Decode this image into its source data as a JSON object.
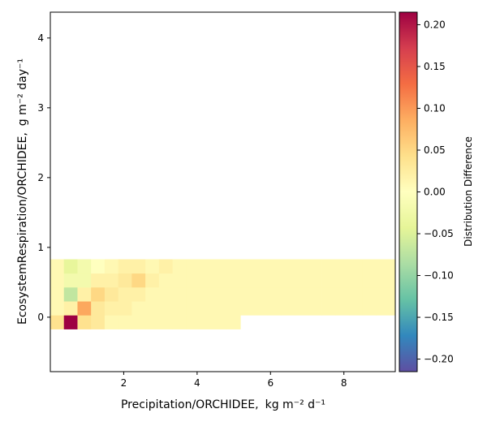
{
  "chart_data": {
    "type": "heatmap",
    "title": "",
    "xlabel": "Precipitation/ORCHIDEE,",
    "xlabel_units": "kg m⁻² d⁻¹",
    "ylabel": "EcosystemRespiration/ORCHIDEE,",
    "ylabel_units": "g m⁻² day⁻¹",
    "xlim": [
      0.0,
      9.4
    ],
    "ylim": [
      -0.78,
      4.37
    ],
    "x_ticks": [
      2,
      4,
      6,
      8
    ],
    "y_ticks": [
      0,
      1,
      2,
      3,
      4
    ],
    "cell_width": 0.37,
    "cell_height": 0.2,
    "x_start": 0.0,
    "y_start": -0.17,
    "colorbar": {
      "label": "Distribution Difference",
      "min": -0.215,
      "max": 0.215,
      "ticks": [
        -0.2,
        -0.15,
        -0.1,
        -0.05,
        0.0,
        0.05,
        0.1,
        0.15,
        0.2
      ],
      "tick_labels": [
        "−0.20",
        "−0.15",
        "−0.10",
        "−0.05",
        "0.00",
        "0.05",
        "0.10",
        "0.15",
        "0.20"
      ],
      "colormap": "Spectral_r"
    },
    "cells": [
      [
        0,
        0,
        0.04
      ],
      [
        1,
        0,
        0.215
      ],
      [
        2,
        0,
        0.04
      ],
      [
        3,
        0,
        0.03
      ],
      [
        4,
        0,
        0.01
      ],
      [
        5,
        0,
        0.01
      ],
      [
        6,
        0,
        0.01
      ],
      [
        7,
        0,
        0.01
      ],
      [
        8,
        0,
        0.01
      ],
      [
        9,
        0,
        0.01
      ],
      [
        10,
        0,
        0.01
      ],
      [
        11,
        0,
        0.01
      ],
      [
        12,
        0,
        0.01
      ],
      [
        13,
        0,
        0.01
      ],
      [
        0,
        1,
        0.01
      ],
      [
        1,
        1,
        0.02
      ],
      [
        2,
        1,
        0.09
      ],
      [
        3,
        1,
        0.03
      ],
      [
        4,
        1,
        0.02
      ],
      [
        5,
        1,
        0.02
      ],
      [
        6,
        1,
        0.01
      ],
      [
        7,
        1,
        0.01
      ],
      [
        8,
        1,
        0.01
      ],
      [
        9,
        1,
        0.01
      ],
      [
        10,
        1,
        0.01
      ],
      [
        11,
        1,
        0.01
      ],
      [
        12,
        1,
        0.01
      ],
      [
        13,
        1,
        0.01
      ],
      [
        14,
        1,
        0.01
      ],
      [
        15,
        1,
        0.01
      ],
      [
        16,
        1,
        0.01
      ],
      [
        17,
        1,
        0.01
      ],
      [
        18,
        1,
        0.01
      ],
      [
        19,
        1,
        0.01
      ],
      [
        20,
        1,
        0.01
      ],
      [
        21,
        1,
        0.01
      ],
      [
        22,
        1,
        0.01
      ],
      [
        23,
        1,
        0.01
      ],
      [
        24,
        1,
        0.01
      ],
      [
        25,
        1,
        0.01
      ],
      [
        26,
        1,
        0.01
      ],
      [
        27,
        1,
        0.01
      ],
      [
        28,
        1,
        0.01
      ],
      [
        0,
        2,
        0.01
      ],
      [
        1,
        2,
        -0.07
      ],
      [
        2,
        2,
        0.02
      ],
      [
        3,
        2,
        0.05
      ],
      [
        4,
        2,
        0.03
      ],
      [
        5,
        2,
        0.02
      ],
      [
        6,
        2,
        0.02
      ],
      [
        7,
        2,
        0.01
      ],
      [
        8,
        2,
        0.01
      ],
      [
        9,
        2,
        0.01
      ],
      [
        10,
        2,
        0.01
      ],
      [
        11,
        2,
        0.01
      ],
      [
        12,
        2,
        0.01
      ],
      [
        13,
        2,
        0.01
      ],
      [
        14,
        2,
        0.01
      ],
      [
        15,
        2,
        0.01
      ],
      [
        16,
        2,
        0.01
      ],
      [
        17,
        2,
        0.01
      ],
      [
        18,
        2,
        0.01
      ],
      [
        19,
        2,
        0.01
      ],
      [
        20,
        2,
        0.01
      ],
      [
        21,
        2,
        0.01
      ],
      [
        22,
        2,
        0.01
      ],
      [
        23,
        2,
        0.01
      ],
      [
        24,
        2,
        0.01
      ],
      [
        25,
        2,
        0.01
      ],
      [
        26,
        2,
        0.01
      ],
      [
        27,
        2,
        0.01
      ],
      [
        28,
        2,
        0.01
      ],
      [
        29,
        2,
        0.01
      ],
      [
        0,
        3,
        0.01
      ],
      [
        1,
        3,
        -0.02
      ],
      [
        2,
        3,
        -0.02
      ],
      [
        3,
        3,
        0.02
      ],
      [
        4,
        3,
        0.02
      ],
      [
        5,
        3,
        0.03
      ],
      [
        6,
        3,
        0.05
      ],
      [
        7,
        3,
        0.02
      ],
      [
        8,
        3,
        0.01
      ],
      [
        9,
        3,
        0.01
      ],
      [
        10,
        3,
        0.01
      ],
      [
        11,
        3,
        0.01
      ],
      [
        12,
        3,
        0.01
      ],
      [
        13,
        3,
        0.01
      ],
      [
        14,
        3,
        0.01
      ],
      [
        15,
        3,
        0.01
      ],
      [
        16,
        3,
        0.01
      ],
      [
        17,
        3,
        0.01
      ],
      [
        18,
        3,
        0.01
      ],
      [
        19,
        3,
        0.01
      ],
      [
        20,
        3,
        0.01
      ],
      [
        21,
        3,
        0.01
      ],
      [
        22,
        3,
        0.01
      ],
      [
        23,
        3,
        0.01
      ],
      [
        24,
        3,
        0.01
      ],
      [
        25,
        3,
        0.01
      ],
      [
        26,
        3,
        0.01
      ],
      [
        27,
        3,
        0.01
      ],
      [
        28,
        3,
        0.01
      ],
      [
        29,
        3,
        0.01
      ],
      [
        30,
        3,
        0.01
      ],
      [
        31,
        3,
        0.01
      ],
      [
        32,
        3,
        0.01
      ],
      [
        33,
        3,
        0.01
      ],
      [
        34,
        3,
        0.01
      ],
      [
        35,
        3,
        0.01
      ],
      [
        36,
        3,
        0.01
      ],
      [
        37,
        3,
        0.01
      ],
      [
        38,
        3,
        0.01
      ],
      [
        39,
        3,
        0.01
      ],
      [
        40,
        3,
        0.01
      ],
      [
        41,
        3,
        0.01
      ],
      [
        42,
        3,
        0.01
      ],
      [
        43,
        3,
        0.01
      ],
      [
        44,
        3,
        0.01
      ],
      [
        45,
        3,
        0.01
      ],
      [
        46,
        3,
        0.01
      ],
      [
        47,
        3,
        0.01
      ],
      [
        48,
        3,
        0.01
      ],
      [
        49,
        3,
        0.01
      ],
      [
        50,
        3,
        0.01
      ],
      [
        51,
        3,
        0.01
      ],
      [
        52,
        3,
        0.01
      ],
      [
        53,
        3,
        0.01
      ],
      [
        54,
        3,
        0.01
      ],
      [
        55,
        3,
        0.01
      ],
      [
        56,
        3,
        0.01
      ],
      [
        57,
        3,
        0.01
      ],
      [
        58,
        3,
        0.01
      ],
      [
        59,
        3,
        0.01
      ],
      [
        60,
        3,
        0.01
      ],
      [
        61,
        3,
        0.01
      ],
      [
        62,
        3,
        0.01
      ],
      [
        63,
        3,
        0.01
      ],
      [
        64,
        3,
        0.01
      ],
      [
        65,
        3,
        0.01
      ],
      [
        66,
        3,
        0.01
      ],
      [
        67,
        3,
        0.01
      ],
      [
        68,
        3,
        0.01
      ],
      [
        69,
        3,
        0.01
      ],
      [
        70,
        3,
        0.01
      ],
      [
        71,
        3,
        0.01
      ],
      [
        72,
        3,
        0.01
      ],
      [
        73,
        3,
        0.01
      ],
      [
        74,
        3,
        0.01
      ],
      [
        75,
        3,
        0.01
      ],
      [
        76,
        3,
        0.01
      ],
      [
        77,
        3,
        0.01
      ],
      [
        78,
        3,
        0.01
      ],
      [
        79,
        3,
        0.01
      ],
      [
        80,
        3,
        0.01
      ],
      [
        81,
        3,
        0.01
      ],
      [
        82,
        3,
        0.01
      ],
      [
        83,
        3,
        0.01
      ],
      [
        84,
        3,
        0.01
      ],
      [
        85,
        3,
        0.01
      ],
      [
        86,
        3,
        0.01
      ],
      [
        87,
        3,
        0.01
      ],
      [
        88,
        3,
        0.01
      ],
      [
        89,
        3,
        0.01
      ],
      [
        90,
        3,
        0.01
      ],
      [
        91,
        3,
        0.01
      ],
      [
        92,
        3,
        0.01
      ],
      [
        93,
        3,
        0.01
      ],
      [
        94,
        3,
        0.01
      ],
      [
        95,
        3,
        0.01
      ],
      [
        96,
        3,
        0.01
      ],
      [
        97,
        3,
        0.01
      ],
      [
        98,
        3,
        0.01
      ],
      [
        99,
        3,
        0.01
      ],
      [
        0,
        4,
        0.01
      ],
      [
        1,
        4,
        -0.04
      ],
      [
        2,
        4,
        -0.02
      ],
      [
        3,
        4,
        0.0
      ],
      [
        4,
        4,
        0.01
      ],
      [
        5,
        4,
        0.02
      ],
      [
        6,
        4,
        0.02
      ],
      [
        7,
        4,
        0.01
      ],
      [
        8,
        4,
        0.02
      ],
      [
        9,
        4,
        0.01
      ],
      [
        10,
        4,
        0.01
      ],
      [
        11,
        4,
        0.01
      ],
      [
        12,
        4,
        0.01
      ],
      [
        13,
        4,
        0.01
      ],
      [
        14,
        4,
        0.01
      ],
      [
        15,
        4,
        0.01
      ],
      [
        16,
        4,
        0.01
      ],
      [
        17,
        4,
        0.01
      ],
      [
        18,
        4,
        0.01
      ],
      [
        19,
        4,
        0.01
      ],
      [
        20,
        4,
        0.01
      ],
      [
        21,
        4,
        0.01
      ],
      [
        22,
        4,
        0.01
      ],
      [
        23,
        4,
        0.01
      ],
      [
        24,
        4,
        0.01
      ],
      [
        25,
        4,
        0.01
      ],
      [
        26,
        4,
        0.01
      ],
      [
        27,
        4,
        0.01
      ],
      [
        28,
        4,
        0.01
      ],
      [
        29,
        4,
        0.01
      ],
      [
        30,
        4,
        0.01
      ],
      [
        31,
        4,
        0.01
      ],
      [
        32,
        4,
        0.01
      ],
      [
        33,
        4,
        0.01
      ],
      [
        34,
        4,
        0.01
      ],
      [
        35,
        4,
        0.01
      ],
      [
        36,
        4,
        0.01
      ],
      [
        37,
        4,
        0.01
      ],
      [
        38,
        4,
        0.01
      ],
      [
        39,
        4,
        0.01
      ],
      [
        40,
        4,
        0.01
      ],
      [
        41,
        4,
        0.01
      ],
      [
        42,
        4,
        0.01
      ],
      [
        43,
        4,
        0.01
      ],
      [
        44,
        4,
        0.01
      ],
      [
        45,
        4,
        0.01
      ],
      [
        46,
        4,
        0.01
      ],
      [
        47,
        4,
        0.01
      ],
      [
        48,
        4,
        0.01
      ],
      [
        49,
        4,
        0.01
      ],
      [
        50,
        4,
        0.01
      ],
      [
        51,
        4,
        0.01
      ],
      [
        52,
        4,
        0.01
      ],
      [
        53,
        4,
        0.01
      ],
      [
        54,
        4,
        0.01
      ],
      [
        55,
        4,
        0.01
      ],
      [
        56,
        4,
        0.01
      ],
      [
        57,
        4,
        0.01
      ],
      [
        58,
        4,
        0.01
      ],
      [
        59,
        4,
        0.01
      ],
      [
        60,
        4,
        0.01
      ],
      [
        61,
        4,
        0.01
      ],
      [
        62,
        4,
        0.01
      ],
      [
        63,
        4,
        0.01
      ],
      [
        64,
        4,
        0.01
      ],
      [
        65,
        4,
        0.01
      ],
      [
        66,
        4,
        0.01
      ],
      [
        67,
        4,
        0.01
      ],
      [
        68,
        4,
        0.01
      ],
      [
        69,
        4,
        0.01
      ],
      [
        70,
        4,
        0.01
      ],
      [
        71,
        4,
        0.01
      ],
      [
        72,
        4,
        0.01
      ],
      [
        73,
        4,
        0.01
      ],
      [
        74,
        4,
        0.01
      ],
      [
        75,
        4,
        0.01
      ],
      [
        76,
        4,
        0.01
      ],
      [
        77,
        4,
        0.01
      ],
      [
        78,
        4,
        0.01
      ],
      [
        79,
        4,
        0.01
      ],
      [
        80,
        4,
        0.01
      ],
      [
        81,
        4,
        0.01
      ],
      [
        82,
        4,
        0.01
      ],
      [
        83,
        4,
        0.01
      ],
      [
        84,
        4,
        0.01
      ],
      [
        85,
        4,
        0.01
      ],
      [
        86,
        4,
        0.01
      ],
      [
        87,
        4,
        0.01
      ],
      [
        88,
        4,
        0.01
      ],
      [
        89,
        4,
        0.01
      ],
      [
        90,
        4,
        0.01
      ],
      [
        91,
        4,
        0.01
      ],
      [
        92,
        4,
        0.01
      ],
      [
        93,
        4,
        0.01
      ],
      [
        94,
        4,
        0.01
      ],
      [
        95,
        4,
        0.01
      ],
      [
        96,
        4,
        0.01
      ],
      [
        97,
        4,
        0.01
      ],
      [
        98,
        4,
        0.01
      ],
      [
        99,
        4,
        0.01
      ]
    ]
  }
}
